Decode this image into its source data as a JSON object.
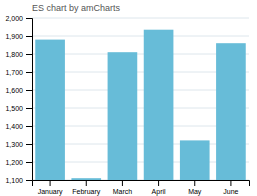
{
  "chart_data": {
    "type": "bar",
    "title": "ES chart by amCharts",
    "categories": [
      "January",
      "February",
      "March",
      "April",
      "May",
      "June"
    ],
    "values": [
      1880,
      1110,
      1810,
      1935,
      1320,
      1860
    ],
    "color": "#67bcd8",
    "ylim": [
      1100,
      2000
    ],
    "yticks": [
      {
        "value": 1100,
        "label": "1,100"
      },
      {
        "value": 1200,
        "label": "1,200"
      },
      {
        "value": 1300,
        "label": "1,300"
      },
      {
        "value": 1400,
        "label": "1,400"
      },
      {
        "value": 1500,
        "label": "1,500"
      },
      {
        "value": 1600,
        "label": "1,600"
      },
      {
        "value": 1700,
        "label": "1,700"
      },
      {
        "value": 1800,
        "label": "1,800"
      },
      {
        "value": 1900,
        "label": "1,900"
      },
      {
        "value": 2000,
        "label": "2,000"
      }
    ],
    "grid": true
  }
}
